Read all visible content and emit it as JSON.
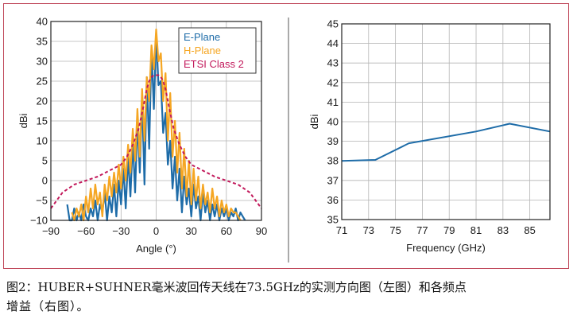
{
  "colors": {
    "frame": "#c0485a",
    "e_plane": "#1e6ca8",
    "h_plane": "#f5a623",
    "etsi": "#c2195b",
    "grid": "#b4b4b4",
    "axis_text": "#1a1a1a",
    "divider": "#555555"
  },
  "chart_data": [
    {
      "type": "line",
      "title": "",
      "xlabel": "Angle (°)",
      "ylabel": "dBi",
      "xlim": [
        -90,
        90
      ],
      "ylim": [
        -10,
        40
      ],
      "xticks": [
        "−90",
        "−60",
        "−30",
        "0",
        "30",
        "60",
        "90"
      ],
      "xtick_values": [
        -90,
        -60,
        -30,
        0,
        30,
        60,
        90
      ],
      "yticks": [
        "−10",
        "−5",
        "0",
        "5",
        "10",
        "15",
        "20",
        "25",
        "30",
        "35",
        "40"
      ],
      "ytick_values": [
        -10,
        -5,
        0,
        5,
        10,
        15,
        20,
        25,
        30,
        35,
        40
      ],
      "grid": true,
      "legend_position": "top-right",
      "series": [
        {
          "name": "E-Plane",
          "style": "solid",
          "x": [
            -76,
            -74,
            -72,
            -70,
            -68,
            -66,
            -64,
            -62,
            -60,
            -58,
            -56,
            -54,
            -52,
            -50,
            -48,
            -46,
            -44,
            -42,
            -40,
            -38,
            -36,
            -34,
            -32,
            -30,
            -28,
            -26,
            -24,
            -22,
            -20,
            -18,
            -16,
            -14,
            -12,
            -10,
            -8,
            -6,
            -4,
            -2,
            0,
            2,
            4,
            6,
            8,
            10,
            12,
            14,
            16,
            18,
            20,
            22,
            24,
            26,
            28,
            30,
            32,
            34,
            36,
            38,
            40,
            42,
            44,
            46,
            48,
            50,
            52,
            54,
            56,
            58,
            60,
            62,
            64,
            66,
            68,
            70,
            72,
            74,
            76
          ],
          "values": [
            -6,
            -10,
            -10,
            -7,
            -10,
            -8,
            -10,
            -6,
            -9,
            -10,
            -7,
            -9,
            -5,
            -10,
            -6,
            -8,
            -3,
            -10,
            -4,
            -8,
            -1,
            -9,
            0,
            -6,
            3,
            -7,
            6,
            -4,
            10,
            -3,
            15,
            2,
            21,
            -1,
            26,
            8,
            33,
            18,
            37,
            24,
            25,
            12,
            17,
            4,
            10,
            -2,
            6,
            -5,
            3,
            -8,
            1,
            -6,
            -2,
            -9,
            -1,
            -7,
            -4,
            -10,
            -3,
            -8,
            -5,
            -10,
            -6,
            -9,
            -6,
            -10,
            -7,
            -9,
            -7,
            -10,
            -8,
            -9,
            -7,
            -10,
            -8,
            -9,
            -10
          ]
        },
        {
          "name": "H-Plane",
          "style": "solid",
          "x": [
            -72,
            -70,
            -68,
            -66,
            -64,
            -62,
            -60,
            -58,
            -56,
            -54,
            -52,
            -50,
            -48,
            -46,
            -44,
            -42,
            -40,
            -38,
            -36,
            -34,
            -32,
            -30,
            -28,
            -26,
            -24,
            -22,
            -20,
            -18,
            -16,
            -14,
            -12,
            -10,
            -8,
            -6,
            -4,
            -2,
            0,
            2,
            4,
            6,
            8,
            10,
            12,
            14,
            16,
            18,
            20,
            22,
            24,
            26,
            28,
            30,
            32,
            34,
            36,
            38,
            40,
            42,
            44,
            46,
            48,
            50,
            52,
            54,
            56,
            58,
            60,
            62,
            64,
            66,
            68,
            70,
            72
          ],
          "values": [
            -8,
            -10,
            -7,
            -9,
            -6,
            -10,
            -4,
            -8,
            -2,
            -7,
            -1,
            -6,
            -3,
            -9,
            -1,
            -5,
            1,
            -4,
            2,
            -3,
            4,
            -2,
            6,
            0,
            9,
            2,
            13,
            5,
            18,
            6,
            23,
            10,
            26,
            20,
            34,
            28,
            38,
            30,
            32,
            20,
            27,
            10,
            22,
            6,
            15,
            2,
            12,
            -2,
            8,
            -4,
            5,
            -6,
            3,
            -5,
            1,
            -7,
            -1,
            -6,
            -3,
            -8,
            -2,
            -7,
            -4,
            -9,
            -5,
            -8,
            -6,
            -9,
            -7,
            -8,
            -8,
            -9,
            -10
          ]
        },
        {
          "name": "ETSI Class 2",
          "style": "dashed",
          "x": [
            -90,
            -80,
            -70,
            -60,
            -50,
            -40,
            -30,
            -25,
            -20,
            -15,
            -12,
            -10,
            -8,
            -6,
            -4,
            -2,
            0,
            2,
            4,
            6,
            8,
            10,
            12,
            15,
            20,
            25,
            30,
            40,
            50,
            60,
            70,
            80,
            90
          ],
          "values": [
            -7,
            -3,
            -1,
            0,
            1,
            2.5,
            4,
            6,
            9,
            13,
            17,
            20,
            23,
            25,
            26,
            26.5,
            26.5,
            26.5,
            26,
            25,
            23,
            20,
            17,
            13,
            9,
            6,
            4,
            2.5,
            1,
            0,
            -1,
            -3,
            -7
          ]
        }
      ]
    },
    {
      "type": "line",
      "title": "",
      "xlabel": "Frequency (GHz)",
      "ylabel": "dBi",
      "xlim": [
        71,
        86.5
      ],
      "ylim": [
        35,
        45
      ],
      "xticks": [
        "71",
        "73",
        "75",
        "77",
        "79",
        "81",
        "83",
        "85"
      ],
      "xtick_values": [
        71,
        73,
        75,
        77,
        79,
        81,
        83,
        85
      ],
      "yticks": [
        "35",
        "36",
        "37",
        "38",
        "39",
        "40",
        "41",
        "42",
        "43",
        "44",
        "45"
      ],
      "ytick_values": [
        35,
        36,
        37,
        38,
        39,
        40,
        41,
        42,
        43,
        44,
        45
      ],
      "grid": true,
      "legend_position": "none",
      "series": [
        {
          "name": "Gain",
          "x": [
            71,
            73.5,
            76,
            81,
            83.5,
            86.5
          ],
          "values": [
            38.0,
            38.05,
            38.9,
            39.5,
            39.9,
            39.5
          ]
        }
      ]
    }
  ],
  "caption": {
    "line1": "图2：HUBER+SUHNER毫米波回传天线在73.5GHz的实测方向图（左图）和各频点",
    "line2": "增益（右图）。"
  }
}
